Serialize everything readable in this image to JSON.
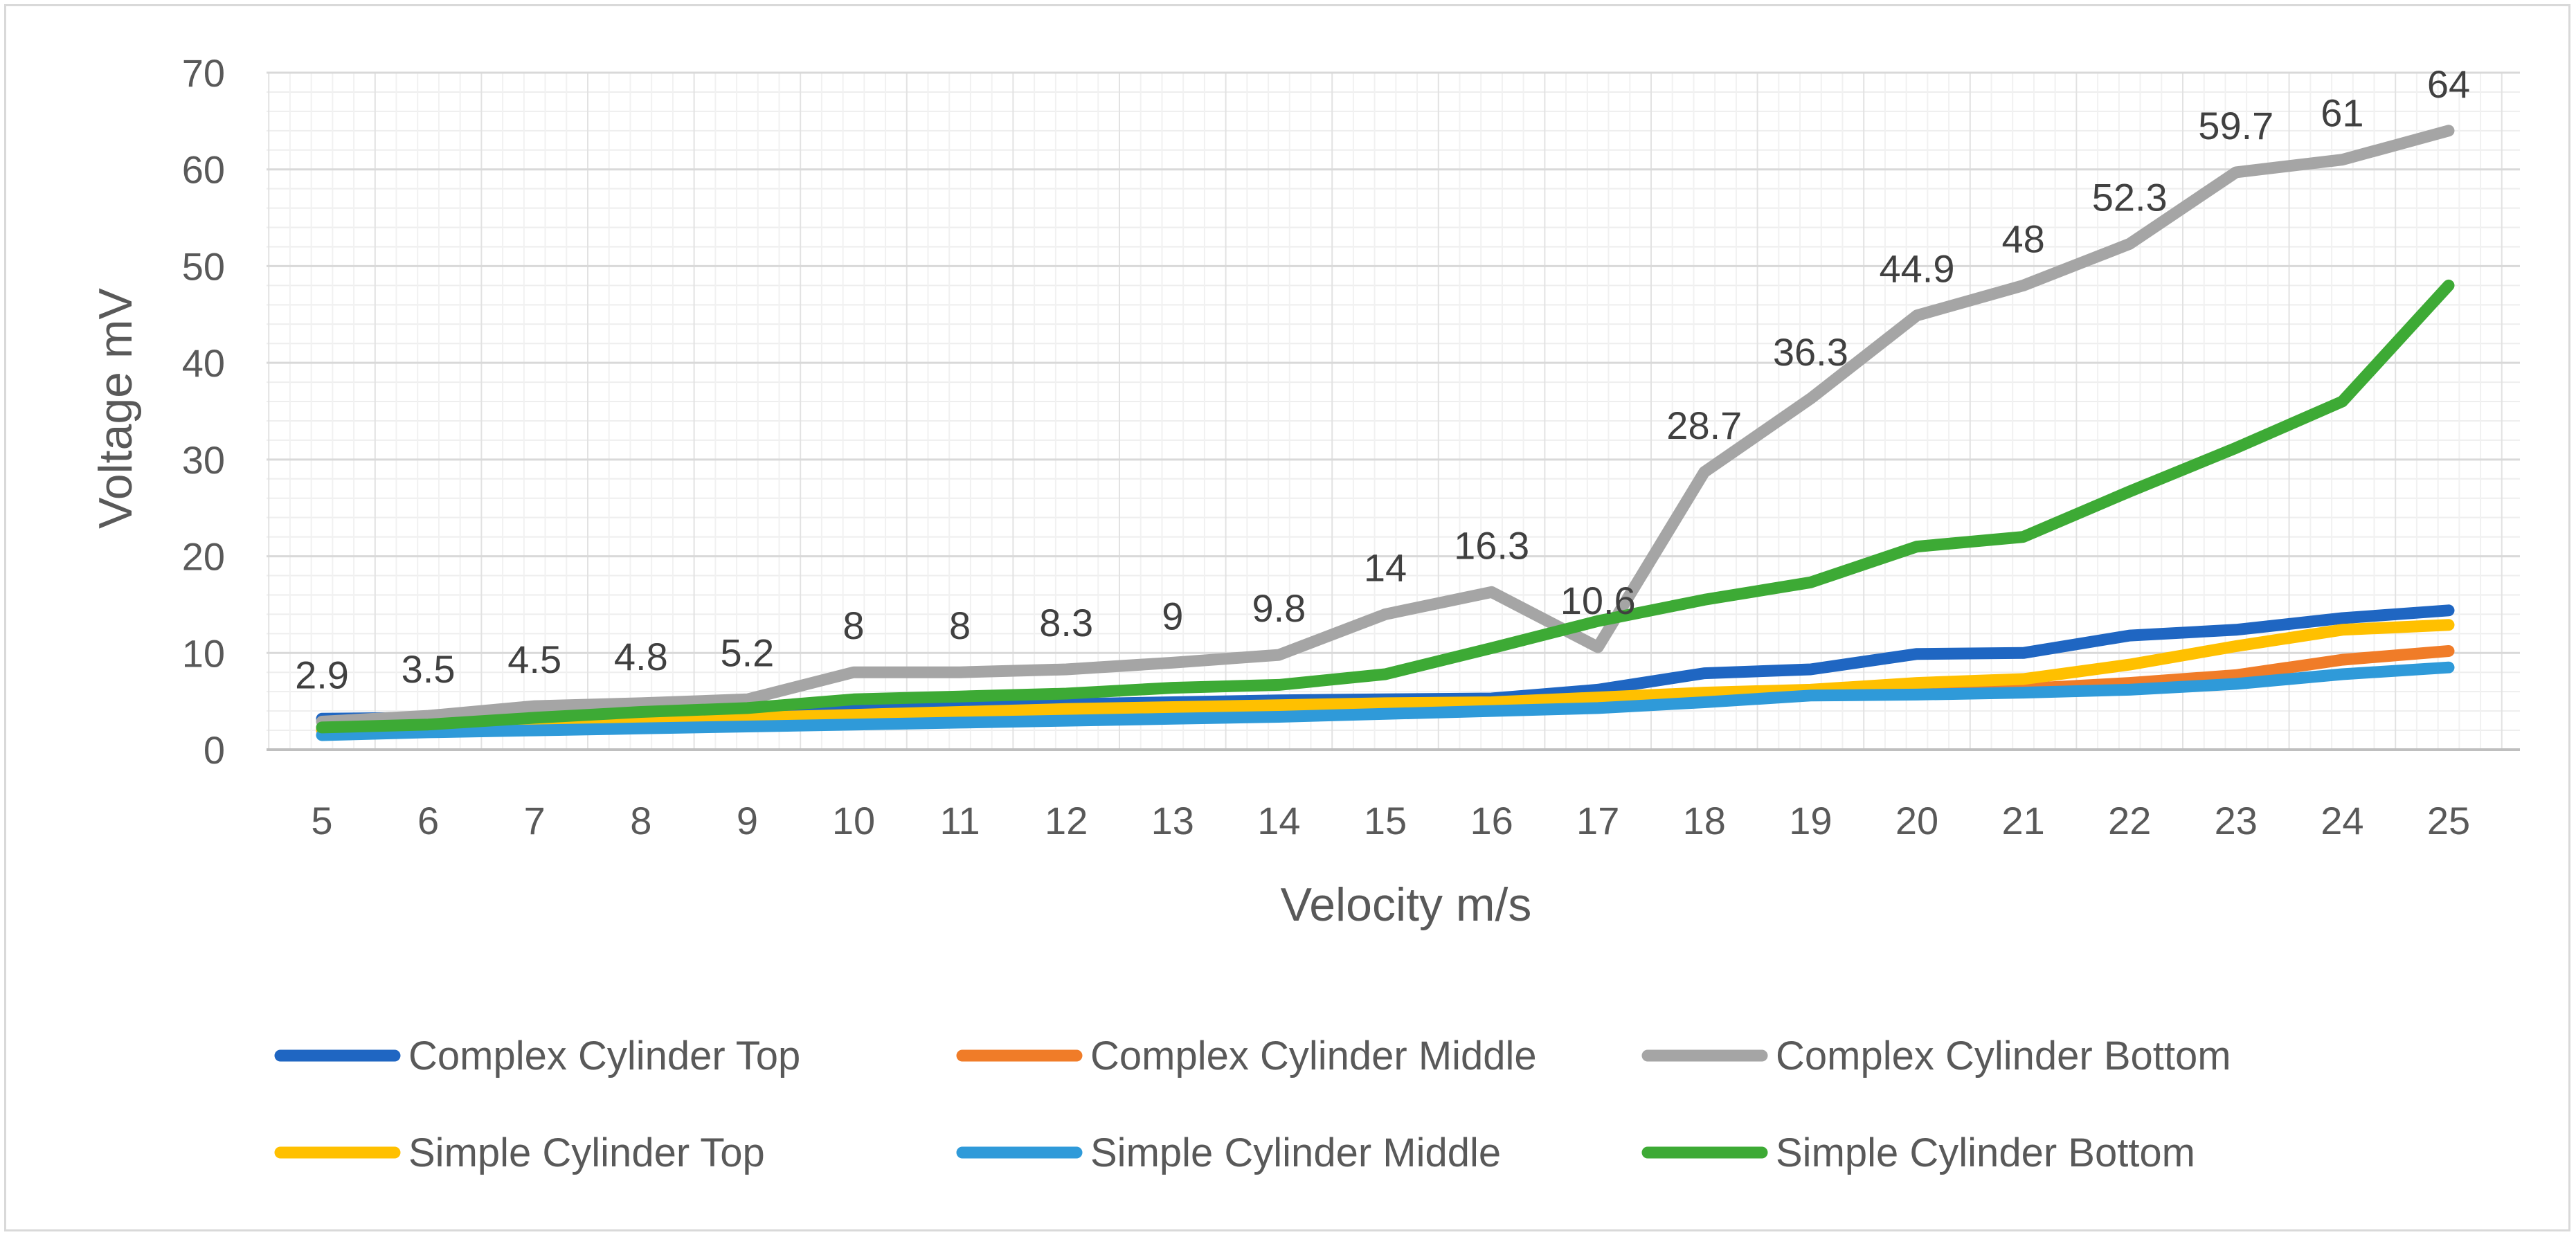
{
  "chart_data": {
    "type": "line",
    "title": "",
    "xlabel": "Velocity m/s",
    "ylabel": "Voltage mV",
    "ylim": [
      0,
      70
    ],
    "ytick_step": 10,
    "minor_gridlines": true,
    "grid": true,
    "legend_position": "bottom",
    "categories": [
      "5",
      "6",
      "7",
      "8",
      "9",
      "10",
      "11",
      "12",
      "13",
      "14",
      "15",
      "16",
      "17",
      "18",
      "19",
      "20",
      "21",
      "22",
      "23",
      "24",
      "25"
    ],
    "series": [
      {
        "name": "Complex Cylinder Top",
        "color": "#1f66c2",
        "values": [
          3.2,
          3.3,
          3.6,
          3.9,
          4.1,
          4.3,
          4.5,
          4.7,
          4.9,
          5.1,
          5.2,
          5.3,
          6.2,
          7.9,
          8.3,
          9.9,
          10.0,
          11.8,
          12.4,
          13.6,
          14.4
        ]
      },
      {
        "name": "Complex Cylinder Middle",
        "color": "#f07c28",
        "values": [
          2.0,
          2.3,
          2.6,
          2.9,
          3.1,
          3.3,
          3.5,
          3.7,
          3.9,
          4.1,
          4.4,
          4.8,
          5.0,
          5.3,
          5.7,
          6.0,
          6.3,
          6.9,
          7.7,
          9.3,
          10.2
        ]
      },
      {
        "name": "Complex Cylinder Bottom",
        "color": "#a5a5a5",
        "values": [
          2.9,
          3.5,
          4.5,
          4.8,
          5.2,
          8,
          8,
          8.3,
          9,
          9.8,
          14,
          16.3,
          10.6,
          28.7,
          36.3,
          44.9,
          48,
          52.3,
          59.7,
          61,
          64
        ],
        "data_labels": [
          "2.9",
          "3.5",
          "4.5",
          "4.8",
          "5.2",
          "8",
          "8",
          "8.3",
          "9",
          "9.8",
          "14",
          "16.3",
          "10.6",
          "28.7",
          "36.3",
          "44.9",
          "48",
          "52.3",
          "59.7",
          "61",
          "64"
        ]
      },
      {
        "name": "Simple Cylinder Top",
        "color": "#ffc000",
        "values": [
          2.1,
          2.4,
          2.7,
          3.0,
          3.3,
          3.6,
          3.9,
          4.2,
          4.4,
          4.6,
          4.8,
          4.9,
          5.4,
          5.9,
          6.2,
          6.9,
          7.3,
          8.8,
          10.7,
          12.4,
          12.9
        ]
      },
      {
        "name": "Simple Cylinder Middle",
        "color": "#2f9ad9",
        "values": [
          1.5,
          1.8,
          2.0,
          2.2,
          2.4,
          2.6,
          2.8,
          3.0,
          3.2,
          3.4,
          3.7,
          4.0,
          4.3,
          4.9,
          5.6,
          5.7,
          5.9,
          6.2,
          6.8,
          7.8,
          8.5
        ]
      },
      {
        "name": "Simple Cylinder Bottom",
        "color": "#3daa35",
        "values": [
          2.3,
          2.6,
          3.3,
          3.9,
          4.3,
          5.2,
          5.5,
          5.8,
          6.4,
          6.7,
          7.8,
          10.5,
          13.3,
          15.5,
          17.3,
          21,
          22,
          26.7,
          31.2,
          36,
          48
        ]
      }
    ]
  }
}
